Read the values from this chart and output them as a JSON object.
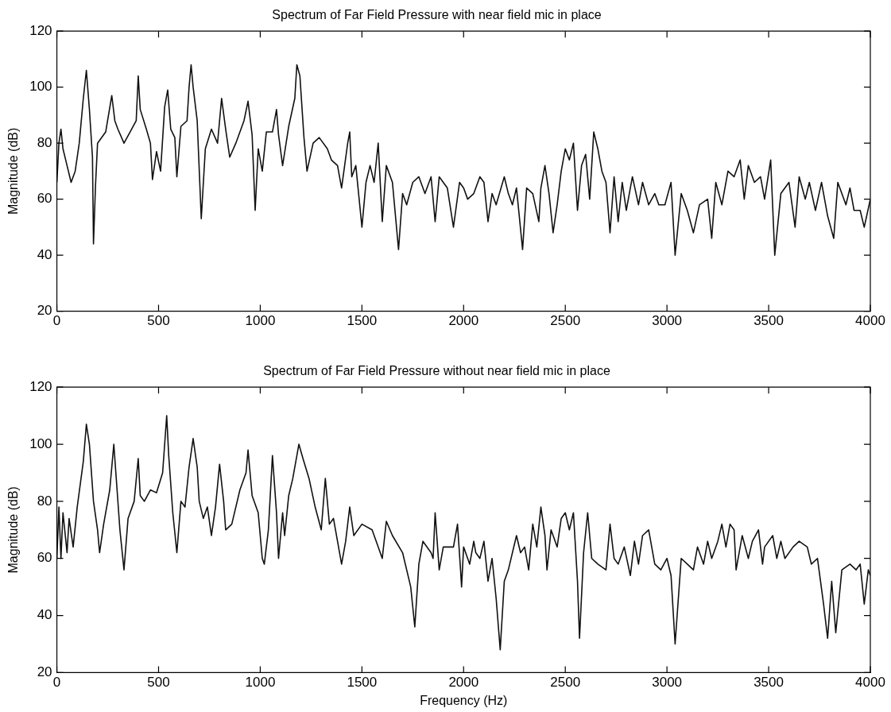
{
  "chart_data": [
    {
      "type": "line",
      "title": "Spectrum of Far Field Pressure with near field mic in place",
      "ylabel": "Magnitude (dB)",
      "xlim": [
        0,
        4000
      ],
      "xticks": [
        0,
        500,
        1000,
        1500,
        2000,
        2500,
        3000,
        3500,
        4000
      ],
      "ylim": [
        20,
        120
      ],
      "yticks": [
        20,
        40,
        60,
        80,
        100,
        120
      ],
      "grid": false,
      "legend": false,
      "marker": "none",
      "line_style": "solid",
      "series": [
        {
          "color": "#111111",
          "x": [
            0,
            10,
            20,
            30,
            50,
            70,
            90,
            110,
            130,
            145,
            160,
            175,
            180,
            190,
            200,
            240,
            270,
            285,
            300,
            330,
            360,
            390,
            400,
            410,
            440,
            460,
            470,
            490,
            510,
            530,
            545,
            560,
            580,
            590,
            610,
            640,
            650,
            660,
            670,
            690,
            710,
            730,
            760,
            790,
            810,
            830,
            850,
            880,
            920,
            940,
            960,
            975,
            990,
            1010,
            1030,
            1060,
            1080,
            1090,
            1110,
            1140,
            1170,
            1180,
            1195,
            1215,
            1230,
            1260,
            1290,
            1330,
            1350,
            1380,
            1400,
            1430,
            1440,
            1450,
            1470,
            1500,
            1520,
            1540,
            1560,
            1580,
            1600,
            1620,
            1650,
            1680,
            1700,
            1720,
            1750,
            1780,
            1810,
            1840,
            1860,
            1880,
            1920,
            1950,
            1980,
            2000,
            2020,
            2050,
            2080,
            2100,
            2120,
            2140,
            2160,
            2200,
            2220,
            2240,
            2260,
            2290,
            2310,
            2340,
            2370,
            2380,
            2400,
            2420,
            2440,
            2460,
            2480,
            2500,
            2520,
            2540,
            2560,
            2580,
            2600,
            2620,
            2640,
            2660,
            2680,
            2700,
            2720,
            2740,
            2760,
            2780,
            2800,
            2830,
            2860,
            2880,
            2910,
            2940,
            2960,
            2990,
            3020,
            3040,
            3070,
            3100,
            3130,
            3160,
            3200,
            3220,
            3240,
            3270,
            3300,
            3330,
            3360,
            3380,
            3400,
            3430,
            3460,
            3480,
            3510,
            3530,
            3560,
            3600,
            3630,
            3650,
            3680,
            3700,
            3730,
            3760,
            3790,
            3820,
            3840,
            3880,
            3900,
            3920,
            3950,
            3970,
            4000
          ],
          "values": [
            66,
            80,
            85,
            78,
            72,
            66,
            70,
            80,
            96,
            106,
            92,
            75,
            44,
            65,
            80,
            84,
            97,
            88,
            85,
            80,
            84,
            88,
            104,
            92,
            85,
            80,
            67,
            77,
            70,
            93,
            99,
            85,
            82,
            68,
            86,
            88,
            100,
            108,
            100,
            88,
            53,
            78,
            85,
            80,
            96,
            85,
            75,
            80,
            88,
            95,
            83,
            56,
            78,
            70,
            84,
            84,
            92,
            83,
            72,
            86,
            96,
            108,
            104,
            82,
            70,
            80,
            82,
            78,
            74,
            72,
            64,
            80,
            84,
            68,
            72,
            50,
            66,
            72,
            66,
            80,
            52,
            72,
            66,
            42,
            62,
            58,
            66,
            68,
            62,
            68,
            52,
            68,
            64,
            50,
            66,
            64,
            60,
            62,
            68,
            66,
            52,
            62,
            58,
            68,
            62,
            58,
            64,
            42,
            64,
            62,
            52,
            64,
            72,
            62,
            48,
            58,
            70,
            78,
            74,
            80,
            56,
            72,
            76,
            60,
            84,
            78,
            70,
            66,
            48,
            68,
            52,
            66,
            56,
            68,
            58,
            66,
            58,
            62,
            58,
            58,
            66,
            40,
            62,
            56,
            48,
            58,
            60,
            46,
            66,
            58,
            70,
            68,
            74,
            60,
            72,
            66,
            68,
            60,
            74,
            40,
            62,
            66,
            50,
            68,
            60,
            66,
            56,
            66,
            54,
            46,
            66,
            58,
            64,
            56,
            56,
            50,
            60
          ]
        }
      ]
    },
    {
      "type": "line",
      "title": "Spectrum of Far Field Pressure without near field mic in place",
      "xlabel": "Frequency (Hz)",
      "ylabel": "Magnitude (dB)",
      "xlim": [
        0,
        4000
      ],
      "xticks": [
        0,
        500,
        1000,
        1500,
        2000,
        2500,
        3000,
        3500,
        4000
      ],
      "ylim": [
        20,
        120
      ],
      "yticks": [
        20,
        40,
        60,
        80,
        100,
        120
      ],
      "grid": false,
      "legend": false,
      "marker": "none",
      "line_style": "solid",
      "series": [
        {
          "color": "#111111",
          "x": [
            0,
            10,
            20,
            30,
            50,
            60,
            80,
            100,
            130,
            145,
            160,
            180,
            200,
            210,
            230,
            260,
            280,
            290,
            310,
            330,
            350,
            380,
            400,
            410,
            430,
            460,
            490,
            520,
            540,
            550,
            570,
            590,
            610,
            630,
            650,
            670,
            690,
            700,
            720,
            740,
            760,
            780,
            800,
            820,
            830,
            860,
            900,
            930,
            940,
            960,
            990,
            1010,
            1020,
            1040,
            1060,
            1080,
            1090,
            1110,
            1120,
            1140,
            1160,
            1190,
            1210,
            1240,
            1270,
            1300,
            1320,
            1340,
            1360,
            1380,
            1400,
            1420,
            1440,
            1460,
            1500,
            1550,
            1580,
            1600,
            1620,
            1650,
            1700,
            1740,
            1760,
            1780,
            1800,
            1840,
            1850,
            1860,
            1880,
            1900,
            1950,
            1970,
            1985,
            1990,
            2000,
            2030,
            2050,
            2060,
            2080,
            2100,
            2120,
            2140,
            2160,
            2180,
            2200,
            2220,
            2260,
            2280,
            2300,
            2320,
            2340,
            2360,
            2380,
            2400,
            2410,
            2430,
            2460,
            2480,
            2500,
            2520,
            2540,
            2560,
            2570,
            2590,
            2610,
            2630,
            2660,
            2700,
            2720,
            2740,
            2760,
            2790,
            2820,
            2840,
            2860,
            2880,
            2910,
            2940,
            2970,
            3000,
            3020,
            3040,
            3070,
            3100,
            3130,
            3150,
            3180,
            3200,
            3220,
            3250,
            3270,
            3290,
            3310,
            3330,
            3340,
            3370,
            3400,
            3420,
            3450,
            3470,
            3480,
            3520,
            3540,
            3560,
            3580,
            3620,
            3650,
            3690,
            3710,
            3740,
            3770,
            3790,
            3810,
            3830,
            3860,
            3900,
            3930,
            3950,
            3970,
            3990,
            4000
          ],
          "values": [
            60,
            78,
            60,
            76,
            62,
            74,
            64,
            78,
            94,
            107,
            100,
            80,
            70,
            62,
            72,
            84,
            100,
            90,
            70,
            56,
            74,
            80,
            95,
            82,
            80,
            84,
            83,
            90,
            110,
            96,
            76,
            62,
            80,
            78,
            92,
            102,
            92,
            80,
            74,
            78,
            68,
            78,
            93,
            80,
            70,
            72,
            84,
            90,
            98,
            82,
            76,
            60,
            58,
            70,
            96,
            76,
            60,
            76,
            68,
            82,
            88,
            100,
            95,
            88,
            78,
            70,
            88,
            72,
            74,
            66,
            58,
            66,
            78,
            68,
            72,
            70,
            64,
            60,
            73,
            68,
            62,
            50,
            36,
            58,
            66,
            62,
            60,
            76,
            56,
            64,
            64,
            72,
            56,
            50,
            64,
            58,
            66,
            62,
            60,
            66,
            52,
            60,
            46,
            28,
            52,
            56,
            68,
            62,
            64,
            56,
            72,
            64,
            78,
            68,
            56,
            70,
            64,
            74,
            76,
            70,
            76,
            52,
            32,
            62,
            76,
            60,
            58,
            56,
            72,
            60,
            58,
            64,
            54,
            66,
            58,
            68,
            70,
            58,
            56,
            60,
            54,
            30,
            60,
            58,
            56,
            64,
            58,
            66,
            60,
            66,
            72,
            64,
            72,
            70,
            56,
            68,
            60,
            66,
            70,
            58,
            64,
            68,
            60,
            66,
            60,
            64,
            66,
            64,
            58,
            60,
            44,
            32,
            52,
            34,
            56,
            58,
            56,
            58,
            44,
            56,
            54
          ]
        }
      ]
    }
  ]
}
